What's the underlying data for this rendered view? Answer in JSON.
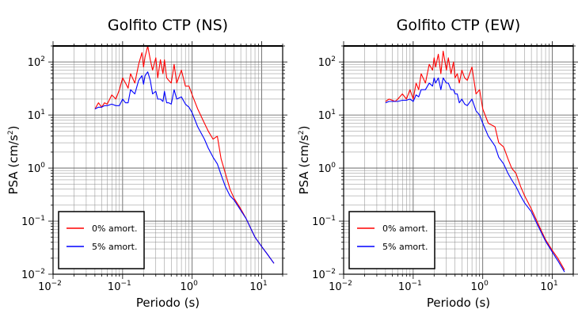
{
  "chart_data": [
    {
      "type": "line",
      "title": "Golfito CTP (NS)",
      "xlabel": "Periodo (s)",
      "ylabel_main": "PSA (cm/s",
      "ylabel_sup": "2",
      "ylabel_tail": ")",
      "x_scale": "log",
      "y_scale": "log",
      "xlim": [
        0.01,
        20
      ],
      "ylim": [
        0.01,
        200
      ],
      "grid": true,
      "legend_position": "bottom-left",
      "x_ticks": [
        {
          "base": "10",
          "exp": "−2"
        },
        {
          "base": "10",
          "exp": "−1"
        },
        {
          "base": "10",
          "exp": "0"
        },
        {
          "base": "10",
          "exp": "1"
        }
      ],
      "y_ticks": [
        {
          "base": "10",
          "exp": "−2"
        },
        {
          "base": "10",
          "exp": "−1"
        },
        {
          "base": "10",
          "exp": "0"
        },
        {
          "base": "10",
          "exp": "1"
        },
        {
          "base": "10",
          "exp": "2"
        }
      ],
      "series": [
        {
          "name": "0% amort.",
          "color": "#ff0000",
          "x": [
            0.04,
            0.045,
            0.05,
            0.055,
            0.06,
            0.07,
            0.08,
            0.09,
            0.1,
            0.11,
            0.12,
            0.13,
            0.15,
            0.17,
            0.19,
            0.2,
            0.21,
            0.23,
            0.25,
            0.27,
            0.3,
            0.32,
            0.35,
            0.38,
            0.4,
            0.43,
            0.46,
            0.5,
            0.55,
            0.6,
            0.7,
            0.8,
            0.9,
            1.0,
            1.2,
            1.5,
            1.7,
            2.0,
            2.3,
            2.6,
            3.0,
            3.5,
            4.0,
            5.0,
            6.0,
            7.0,
            8.0,
            10.0,
            12.0,
            15.0
          ],
          "y": [
            13,
            17,
            14,
            17,
            16,
            24,
            20,
            30,
            50,
            40,
            32,
            60,
            40,
            90,
            150,
            80,
            125,
            200,
            110,
            70,
            120,
            50,
            110,
            60,
            110,
            50,
            45,
            40,
            90,
            40,
            70,
            35,
            35,
            24,
            13,
            7,
            5,
            3.5,
            4,
            1.5,
            0.8,
            0.4,
            0.27,
            0.17,
            0.11,
            0.072,
            0.05,
            0.033,
            0.024,
            0.016
          ]
        },
        {
          "name": "5% amort.",
          "color": "#0000ff",
          "x": [
            0.04,
            0.045,
            0.05,
            0.055,
            0.06,
            0.07,
            0.08,
            0.09,
            0.1,
            0.11,
            0.12,
            0.13,
            0.15,
            0.17,
            0.19,
            0.2,
            0.21,
            0.23,
            0.25,
            0.27,
            0.3,
            0.32,
            0.35,
            0.38,
            0.4,
            0.43,
            0.46,
            0.5,
            0.55,
            0.6,
            0.7,
            0.8,
            0.9,
            1.0,
            1.2,
            1.5,
            1.7,
            2.0,
            2.3,
            2.6,
            3.0,
            3.5,
            4.0,
            5.0,
            6.0,
            7.0,
            8.0,
            10.0,
            12.0,
            15.0
          ],
          "y": [
            13,
            14,
            14,
            15,
            15,
            16,
            15,
            15,
            20,
            17,
            17,
            30,
            25,
            45,
            55,
            38,
            55,
            65,
            45,
            25,
            28,
            20,
            20,
            18,
            28,
            17,
            17,
            16,
            30,
            20,
            22,
            16,
            14,
            11,
            6,
            3.5,
            2.4,
            1.6,
            1.2,
            0.75,
            0.45,
            0.3,
            0.25,
            0.16,
            0.11,
            0.072,
            0.05,
            0.033,
            0.024,
            0.016
          ]
        }
      ]
    },
    {
      "type": "line",
      "title": "Golfito CTP (EW)",
      "xlabel": "Periodo (s)",
      "ylabel_main": "PSA (cm/s",
      "ylabel_sup": "2",
      "ylabel_tail": ")",
      "x_scale": "log",
      "y_scale": "log",
      "xlim": [
        0.01,
        20
      ],
      "ylim": [
        0.01,
        200
      ],
      "grid": true,
      "legend_position": "bottom-left",
      "x_ticks": [
        {
          "base": "10",
          "exp": "−2"
        },
        {
          "base": "10",
          "exp": "−1"
        },
        {
          "base": "10",
          "exp": "0"
        },
        {
          "base": "10",
          "exp": "1"
        }
      ],
      "y_ticks": [
        {
          "base": "10",
          "exp": "−2"
        },
        {
          "base": "10",
          "exp": "−1"
        },
        {
          "base": "10",
          "exp": "0"
        },
        {
          "base": "10",
          "exp": "1"
        },
        {
          "base": "10",
          "exp": "2"
        }
      ],
      "series": [
        {
          "name": "0% amort.",
          "color": "#ff0000",
          "x": [
            0.04,
            0.045,
            0.05,
            0.055,
            0.06,
            0.07,
            0.08,
            0.09,
            0.1,
            0.11,
            0.12,
            0.13,
            0.15,
            0.17,
            0.19,
            0.2,
            0.21,
            0.23,
            0.25,
            0.27,
            0.3,
            0.32,
            0.35,
            0.38,
            0.4,
            0.43,
            0.46,
            0.5,
            0.55,
            0.6,
            0.7,
            0.8,
            0.9,
            1.0,
            1.2,
            1.5,
            1.7,
            2.0,
            2.3,
            2.6,
            3.0,
            3.5,
            4.0,
            5.0,
            6.0,
            7.0,
            8.0,
            10.0,
            12.0,
            15.0
          ],
          "y": [
            18,
            20,
            19,
            18,
            20,
            25,
            20,
            30,
            20,
            40,
            30,
            60,
            40,
            90,
            70,
            120,
            80,
            140,
            60,
            160,
            70,
            120,
            60,
            100,
            50,
            60,
            40,
            70,
            50,
            45,
            80,
            25,
            30,
            13,
            7,
            6,
            3,
            2.5,
            1.5,
            1.0,
            0.8,
            0.45,
            0.3,
            0.17,
            0.1,
            0.065,
            0.045,
            0.028,
            0.02,
            0.012
          ]
        },
        {
          "name": "5% amort.",
          "color": "#0000ff",
          "x": [
            0.04,
            0.045,
            0.05,
            0.055,
            0.06,
            0.07,
            0.08,
            0.09,
            0.1,
            0.11,
            0.12,
            0.13,
            0.15,
            0.17,
            0.19,
            0.2,
            0.21,
            0.23,
            0.25,
            0.27,
            0.3,
            0.32,
            0.35,
            0.38,
            0.4,
            0.43,
            0.46,
            0.5,
            0.55,
            0.6,
            0.7,
            0.8,
            0.9,
            1.0,
            1.2,
            1.5,
            1.7,
            2.0,
            2.3,
            2.6,
            3.0,
            3.5,
            4.0,
            5.0,
            6.0,
            7.0,
            8.0,
            10.0,
            12.0,
            15.0
          ],
          "y": [
            17,
            18,
            18,
            18,
            18,
            19,
            19,
            20,
            18,
            24,
            22,
            30,
            30,
            40,
            35,
            50,
            40,
            50,
            30,
            50,
            40,
            40,
            30,
            30,
            25,
            25,
            17,
            20,
            16,
            15,
            20,
            12,
            10,
            7,
            4,
            2.6,
            1.6,
            1.2,
            0.8,
            0.6,
            0.45,
            0.3,
            0.22,
            0.15,
            0.09,
            0.06,
            0.042,
            0.026,
            0.018,
            0.011
          ]
        }
      ]
    }
  ]
}
